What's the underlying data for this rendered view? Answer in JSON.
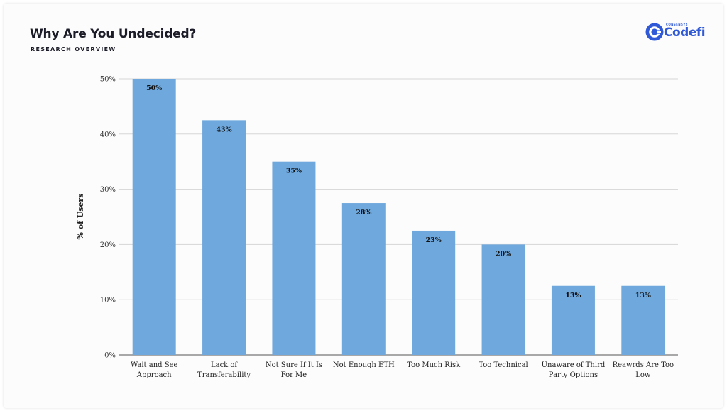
{
  "header": {
    "title": "Why Are You Undecided?",
    "subtitle": "RESEARCH OVERVIEW"
  },
  "logo": {
    "brand_small": "CONSENSYS",
    "brand_name": "Codefi",
    "color": "#2f59d7"
  },
  "chart_data": {
    "type": "bar",
    "categories": [
      [
        "Wait and See",
        "Approach"
      ],
      [
        "Lack of",
        "Transferability"
      ],
      [
        "Not Sure If It Is",
        "For Me"
      ],
      [
        "Not Enough ETH"
      ],
      [
        "Too Much Risk"
      ],
      [
        "Too Technical"
      ],
      [
        "Unaware of Third",
        "Party Options"
      ],
      [
        "Reawrds Are Too",
        "Low"
      ]
    ],
    "values": [
      50,
      42.5,
      35,
      27.5,
      22.5,
      20,
      12.5,
      12.5
    ],
    "data_labels": [
      "50%",
      "43%",
      "35%",
      "28%",
      "23%",
      "20%",
      "13%",
      "13%"
    ],
    "ylabel": "% of Users",
    "yticks": [
      "0%",
      "10%",
      "20%",
      "30%",
      "40%",
      "50%"
    ],
    "ylim": [
      0,
      50
    ],
    "grid": true,
    "bar_color": "#6fa8dc"
  }
}
